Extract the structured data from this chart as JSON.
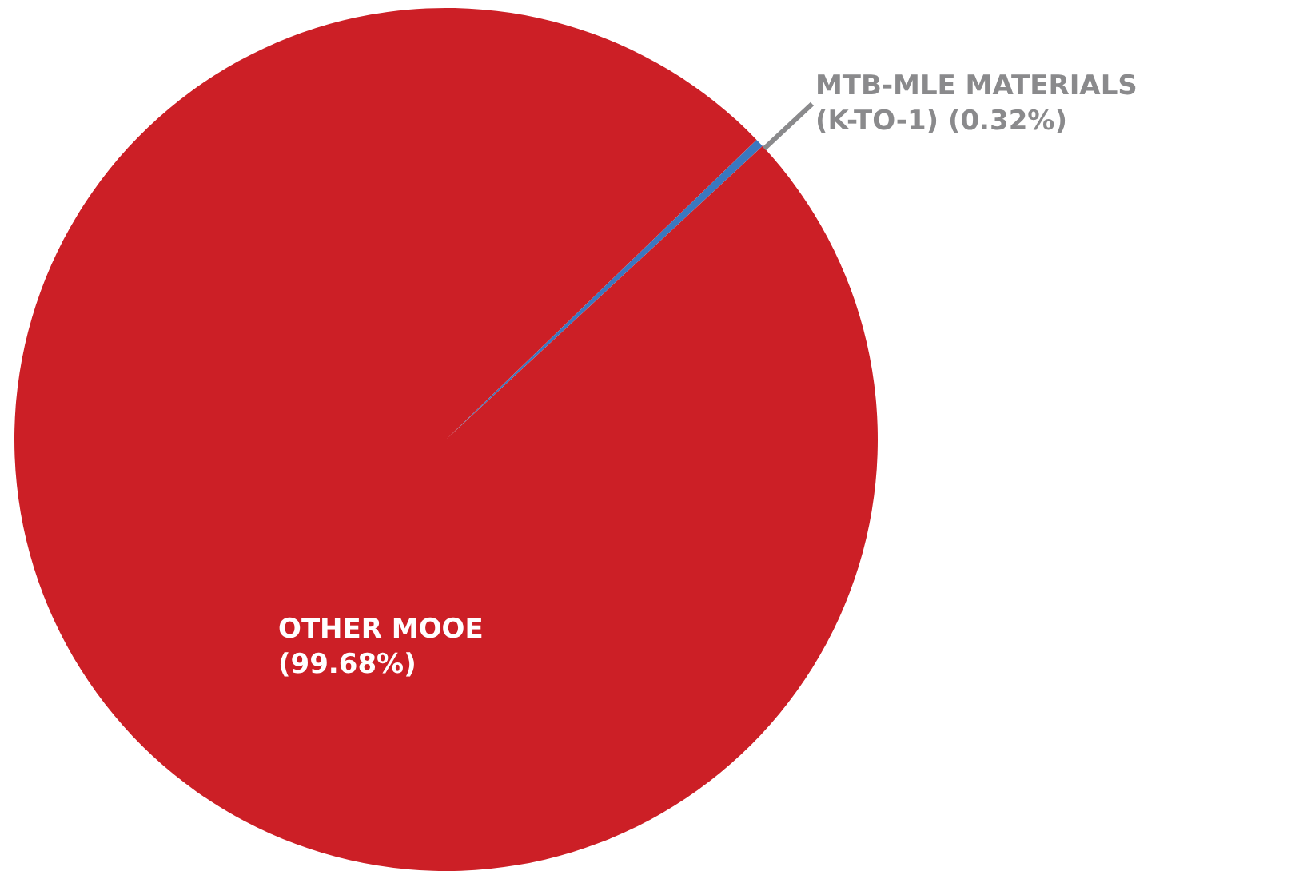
{
  "chart_data": {
    "type": "pie",
    "categories": [
      "MTB-MLE MATERIALS (K-TO-1)",
      "OTHER MOOE"
    ],
    "values": [
      0.32,
      99.68
    ],
    "colors": [
      "#3a78c0",
      "#cc1f26"
    ],
    "value_labels": [
      "(0.32%)",
      "(99.68%)"
    ],
    "legend": false
  }
}
